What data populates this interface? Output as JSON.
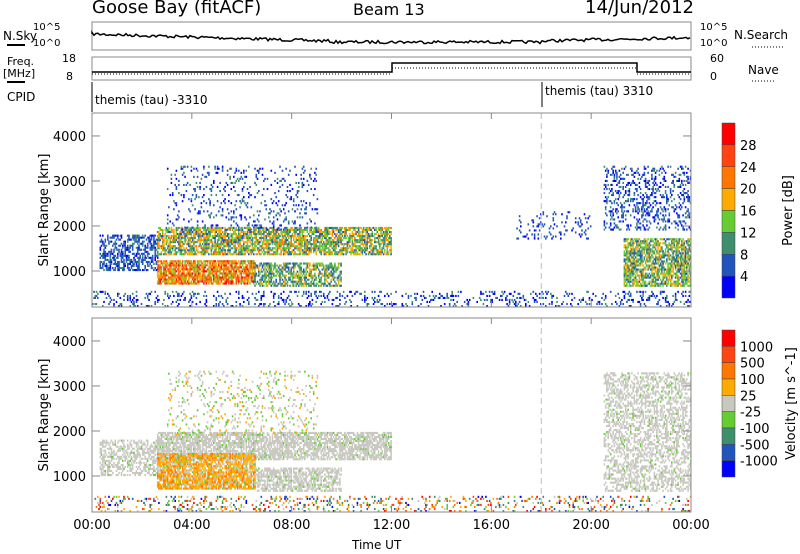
{
  "header": {
    "title": "Goose Bay (fitACF)",
    "beam": "Beam 13",
    "date": "14/Jun/2012"
  },
  "top": {
    "nsky_label": "N.Sky",
    "nsearch_label": "N.Search",
    "freq_label": "Freq.",
    "freq_unit": "[MHz]",
    "nave_label": "Nave",
    "cpid_label": "CPID",
    "left_ticks_noise": [
      "10^5",
      "10^0"
    ],
    "right_ticks_noise": [
      "10^5",
      "10^0"
    ],
    "left_ticks_freq": [
      "18",
      "8"
    ],
    "right_ticks_freq": [
      "60",
      "0"
    ],
    "cpid_1": "themis (tau) -3310",
    "cpid_2": "themis (tau) 3310"
  },
  "chart_data": [
    {
      "type": "heatmap",
      "name": "power",
      "ylabel": "Slant Range [km]",
      "xlabel": "",
      "xlim": [
        0,
        24
      ],
      "ylim": [
        200,
        4510
      ],
      "yticks": [
        "1000",
        "2000",
        "3000",
        "4000"
      ],
      "ytick_values": [
        1000,
        2000,
        3000,
        4000
      ],
      "colorbar": {
        "label": "Power [dB]",
        "ticks": [
          "4",
          "8",
          "12",
          "16",
          "20",
          "24",
          "28"
        ],
        "colors": [
          "#0000ff",
          "#2255bb",
          "#3f8f6f",
          "#66cc33",
          "#ffaa00",
          "#ff7700",
          "#ff4411",
          "#ff0000"
        ]
      },
      "regions": [
        {
          "t": [
            0.3,
            2.6
          ],
          "r": [
            1000,
            1800
          ],
          "value": [
            3,
            9
          ],
          "density": 0.55
        },
        {
          "t": [
            2.6,
            12
          ],
          "r": [
            1350,
            1950
          ],
          "value": [
            6,
            22
          ],
          "density": 0.7
        },
        {
          "t": [
            2.6,
            6.5
          ],
          "r": [
            700,
            1200
          ],
          "value": [
            12,
            30
          ],
          "density": 0.8
        },
        {
          "t": [
            6.5,
            10
          ],
          "r": [
            650,
            1150
          ],
          "value": [
            6,
            18
          ],
          "density": 0.6
        },
        {
          "t": [
            3,
            9
          ],
          "r": [
            1900,
            3300
          ],
          "value": [
            2,
            10
          ],
          "density": 0.12
        },
        {
          "t": [
            0,
            24
          ],
          "r": [
            200,
            550
          ],
          "value": [
            1,
            10
          ],
          "density": 0.18
        },
        {
          "t": [
            17,
            20
          ],
          "r": [
            1700,
            2300
          ],
          "value": [
            2,
            8
          ],
          "density": 0.15
        },
        {
          "t": [
            20.5,
            24
          ],
          "r": [
            1900,
            3300
          ],
          "value": [
            2,
            10
          ],
          "density": 0.25
        },
        {
          "t": [
            21.3,
            24
          ],
          "r": [
            650,
            1700
          ],
          "value": [
            6,
            20
          ],
          "density": 0.7
        }
      ]
    },
    {
      "type": "heatmap",
      "name": "velocity",
      "ylabel": "Slant Range [km]",
      "xlabel": "Time UT",
      "xlim": [
        0,
        24
      ],
      "ylim": [
        200,
        4510
      ],
      "xticks": [
        "00:00",
        "04:00",
        "08:00",
        "12:00",
        "16:00",
        "20:00",
        "00:00"
      ],
      "yticks": [
        "1000",
        "2000",
        "3000",
        "4000"
      ],
      "ytick_values": [
        1000,
        2000,
        3000,
        4000
      ],
      "colorbar": {
        "label": "Velocity [m s^-1]",
        "ticks": [
          "1000",
          "500",
          "100",
          "25",
          "-25",
          "-100",
          "-500",
          "-1000"
        ],
        "colors": [
          "#0000ff",
          "#2255bb",
          "#3f8f6f",
          "#66cc33",
          "#c8c8c0",
          "#ffaa00",
          "#ff7700",
          "#ff4411",
          "#ff0000"
        ]
      },
      "regions": [
        {
          "t": [
            0.3,
            2.6
          ],
          "r": [
            1000,
            1800
          ],
          "value": [
            4,
            4
          ],
          "density": 0.5
        },
        {
          "t": [
            2.6,
            12
          ],
          "r": [
            1350,
            1950
          ],
          "value": [
            4,
            4
          ],
          "density": 0.7
        },
        {
          "t": [
            2.6,
            6.5
          ],
          "r": [
            700,
            1500
          ],
          "value": [
            4,
            6
          ],
          "density": 0.8
        },
        {
          "t": [
            6.5,
            10
          ],
          "r": [
            650,
            1150
          ],
          "value": [
            4,
            4
          ],
          "density": 0.6
        },
        {
          "t": [
            3,
            9
          ],
          "r": [
            1900,
            3300
          ],
          "value": [
            3,
            5
          ],
          "density": 0.12
        },
        {
          "t": [
            0,
            24
          ],
          "r": [
            200,
            550
          ],
          "value": [
            0,
            8
          ],
          "density": 0.18
        },
        {
          "t": [
            20.5,
            24
          ],
          "r": [
            650,
            3300
          ],
          "value": [
            4,
            4
          ],
          "density": 0.45
        }
      ]
    }
  ]
}
